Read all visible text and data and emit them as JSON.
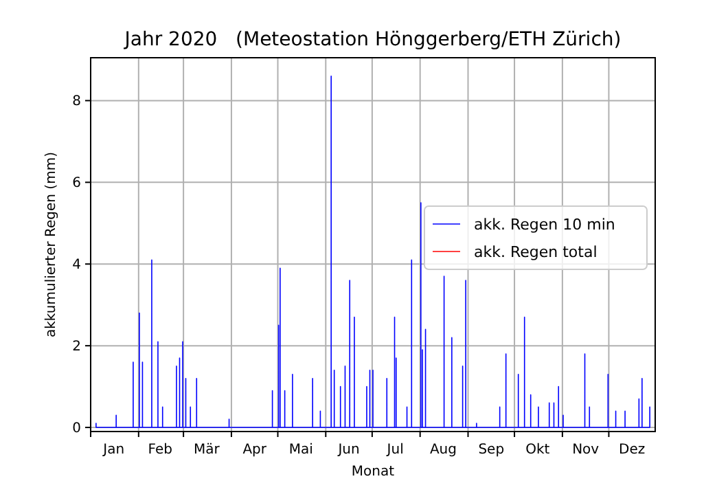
{
  "chart_data": {
    "type": "line",
    "title": "Jahr 2020   (Meteostation Hönggerberg/ETH Zürich)",
    "xlabel": "Monat",
    "ylabel": "akkumulierter Regen (mm)",
    "xlim": [
      "2020-01-01",
      "2020-12-31"
    ],
    "xticks": [
      {
        "value": "2020-01-01",
        "label": null
      },
      {
        "value": "2020-02-01",
        "label": null
      },
      {
        "value": "2020-03-01",
        "label": null
      },
      {
        "value": "2020-04-01",
        "label": null
      },
      {
        "value": "2020-05-01",
        "label": null
      },
      {
        "value": "2020-06-01",
        "label": null
      },
      {
        "value": "2020-07-01",
        "label": null
      },
      {
        "value": "2020-08-01",
        "label": null
      },
      {
        "value": "2020-09-01",
        "label": null
      },
      {
        "value": "2020-10-01",
        "label": null
      },
      {
        "value": "2020-11-01",
        "label": null
      },
      {
        "value": "2020-12-01",
        "label": null
      },
      {
        "value": "2020-01-16",
        "label": "Jan"
      },
      {
        "value": "2020-02-15",
        "label": "Feb"
      },
      {
        "value": "2020-03-16",
        "label": "Mär"
      },
      {
        "value": "2020-04-16",
        "label": "Apr"
      },
      {
        "value": "2020-05-16",
        "label": "Mai"
      },
      {
        "value": "2020-06-16",
        "label": "Jun"
      },
      {
        "value": "2020-07-16",
        "label": "Jul"
      },
      {
        "value": "2020-08-16",
        "label": "Aug"
      },
      {
        "value": "2020-09-16",
        "label": "Sep"
      },
      {
        "value": "2020-10-16",
        "label": "Okt"
      },
      {
        "value": "2020-11-16",
        "label": "Nov"
      },
      {
        "value": "2020-12-16",
        "label": "Dez"
      }
    ],
    "ylim": [
      -0.1,
      9.05
    ],
    "yticks": [
      0,
      2,
      4,
      6,
      8
    ],
    "grid": true,
    "legend": "right",
    "series": [
      {
        "name": "akk. Regen 10 min",
        "color": "#0000ff",
        "x": [
          "2020-01-04T11:50",
          "2020-01-04T12:00",
          "2020-01-04T12:10",
          "2020-01-17T11:50",
          "2020-01-17T12:00",
          "2020-01-17T12:10",
          "2020-01-28T11:50",
          "2020-01-28T12:00",
          "2020-01-28T12:10",
          "2020-02-01T11:50",
          "2020-02-01T12:00",
          "2020-02-01T12:10",
          "2020-02-03T11:50",
          "2020-02-03T12:00",
          "2020-02-03T12:10",
          "2020-02-09T11:50",
          "2020-02-09T12:00",
          "2020-02-09T12:10",
          "2020-02-13T11:50",
          "2020-02-13T12:00",
          "2020-02-13T12:10",
          "2020-02-16T11:50",
          "2020-02-16T12:00",
          "2020-02-16T12:10",
          "2020-02-25T11:50",
          "2020-02-25T12:00",
          "2020-02-25T12:10",
          "2020-02-27T11:50",
          "2020-02-27T12:00",
          "2020-02-27T12:10",
          "2020-02-29T11:50",
          "2020-02-29T12:00",
          "2020-02-29T12:10",
          "2020-03-02T11:50",
          "2020-03-02T12:00",
          "2020-03-02T12:10",
          "2020-03-05T11:50",
          "2020-03-05T12:00",
          "2020-03-05T12:10",
          "2020-03-09T11:50",
          "2020-03-09T12:00",
          "2020-03-09T12:10",
          "2020-03-30T11:50",
          "2020-03-30T12:00",
          "2020-03-30T12:10",
          "2020-04-27T11:50",
          "2020-04-27T12:00",
          "2020-04-27T12:10",
          "2020-05-01T11:50",
          "2020-05-01T12:00",
          "2020-05-01T12:10",
          "2020-05-02T11:50",
          "2020-05-02T12:00",
          "2020-05-02T12:10",
          "2020-05-05T11:50",
          "2020-05-05T12:00",
          "2020-05-05T12:10",
          "2020-05-10T11:50",
          "2020-05-10T12:00",
          "2020-05-10T12:10",
          "2020-05-23T11:50",
          "2020-05-23T12:00",
          "2020-05-23T12:10",
          "2020-05-28T11:50",
          "2020-05-28T12:00",
          "2020-05-28T12:10",
          "2020-06-04T11:50",
          "2020-06-04T12:00",
          "2020-06-04T12:10",
          "2020-06-06T11:50",
          "2020-06-06T12:00",
          "2020-06-06T12:10",
          "2020-06-10T11:50",
          "2020-06-10T12:00",
          "2020-06-10T12:10",
          "2020-06-13T11:50",
          "2020-06-13T12:00",
          "2020-06-13T12:10",
          "2020-06-16T11:50",
          "2020-06-16T12:00",
          "2020-06-16T12:10",
          "2020-06-19T11:50",
          "2020-06-19T12:00",
          "2020-06-19T12:10",
          "2020-06-27T11:50",
          "2020-06-27T12:00",
          "2020-06-27T12:10",
          "2020-06-29T11:50",
          "2020-06-29T12:00",
          "2020-06-29T12:10",
          "2020-07-01T11:50",
          "2020-07-01T12:00",
          "2020-07-01T12:10",
          "2020-07-10T11:50",
          "2020-07-10T12:00",
          "2020-07-10T12:10",
          "2020-07-15T11:50",
          "2020-07-15T12:00",
          "2020-07-15T12:10",
          "2020-07-16T11:50",
          "2020-07-16T12:00",
          "2020-07-16T12:10",
          "2020-07-23T11:50",
          "2020-07-23T12:00",
          "2020-07-23T12:10",
          "2020-07-26T11:50",
          "2020-07-26T12:00",
          "2020-07-26T12:10",
          "2020-08-01T11:50",
          "2020-08-01T12:00",
          "2020-08-01T12:10",
          "2020-08-02T11:50",
          "2020-08-02T12:00",
          "2020-08-02T12:10",
          "2020-08-04T11:50",
          "2020-08-04T12:00",
          "2020-08-04T12:10",
          "2020-08-16T11:50",
          "2020-08-16T12:00",
          "2020-08-16T12:10",
          "2020-08-21T11:50",
          "2020-08-21T12:00",
          "2020-08-21T12:10",
          "2020-08-28T11:50",
          "2020-08-28T12:00",
          "2020-08-28T12:10",
          "2020-08-30T11:50",
          "2020-08-30T12:00",
          "2020-08-30T12:10",
          "2020-09-06T11:50",
          "2020-09-06T12:00",
          "2020-09-06T12:10",
          "2020-09-21T11:50",
          "2020-09-21T12:00",
          "2020-09-21T12:10",
          "2020-09-25T11:50",
          "2020-09-25T12:00",
          "2020-09-25T12:10",
          "2020-10-03T11:50",
          "2020-10-03T12:00",
          "2020-10-03T12:10",
          "2020-10-07T11:50",
          "2020-10-07T12:00",
          "2020-10-07T12:10",
          "2020-10-11T11:50",
          "2020-10-11T12:00",
          "2020-10-11T12:10",
          "2020-10-16T11:50",
          "2020-10-16T12:00",
          "2020-10-16T12:10",
          "2020-10-23T11:50",
          "2020-10-23T12:00",
          "2020-10-23T12:10",
          "2020-10-26T11:50",
          "2020-10-26T12:00",
          "2020-10-26T12:10",
          "2020-10-29T11:50",
          "2020-10-29T12:00",
          "2020-10-29T12:10",
          "2020-11-01T11:50",
          "2020-11-01T12:00",
          "2020-11-01T12:10",
          "2020-11-15T11:50",
          "2020-11-15T12:00",
          "2020-11-15T12:10",
          "2020-11-18T11:50",
          "2020-11-18T12:00",
          "2020-11-18T12:10",
          "2020-11-30T11:50",
          "2020-11-30T12:00",
          "2020-11-30T12:10",
          "2020-12-05T11:50",
          "2020-12-05T12:00",
          "2020-12-05T12:10",
          "2020-12-11T11:50",
          "2020-12-11T12:00",
          "2020-12-11T12:10",
          "2020-12-20T11:50",
          "2020-12-20T12:00",
          "2020-12-20T12:10",
          "2020-12-22T11:50",
          "2020-12-22T12:00",
          "2020-12-22T12:10",
          "2020-12-27T11:50",
          "2020-12-27T12:00",
          "2020-12-27T12:10"
        ],
        "values": [
          0,
          0.1,
          0,
          0,
          0.3,
          0,
          0,
          1.6,
          0,
          0,
          2.8,
          0,
          0,
          1.6,
          0,
          0,
          4.1,
          0,
          0,
          2.1,
          0,
          0,
          0.5,
          0,
          0,
          1.5,
          0,
          0,
          1.7,
          0,
          0,
          2.1,
          0,
          0,
          1.2,
          0,
          0,
          0.5,
          0,
          0,
          1.2,
          0,
          0,
          0.2,
          0,
          0,
          0.9,
          0,
          0,
          2.5,
          0,
          0,
          3.9,
          0,
          0,
          0.9,
          0,
          0,
          1.3,
          0,
          0,
          1.2,
          0,
          0,
          0.4,
          0,
          0,
          8.6,
          0,
          0,
          1.4,
          0,
          0,
          1.0,
          0,
          0,
          1.5,
          0,
          0,
          3.6,
          0,
          0,
          2.7,
          0,
          0,
          1.0,
          0,
          0,
          1.4,
          0,
          0,
          1.4,
          0,
          0,
          1.2,
          0,
          0,
          2.7,
          0,
          0,
          1.7,
          0,
          0,
          0.5,
          0,
          0,
          4.1,
          0,
          0,
          5.5,
          0,
          0,
          1.9,
          0,
          0,
          2.4,
          0,
          0,
          3.7,
          0,
          0,
          2.2,
          0,
          0,
          1.5,
          0,
          0,
          3.6,
          0,
          0,
          0.1,
          0,
          0,
          0.5,
          0,
          0,
          1.8,
          0,
          0,
          1.3,
          0,
          0,
          2.7,
          0,
          0,
          0.8,
          0,
          0,
          0.5,
          0,
          0,
          0.6,
          0,
          0,
          0.6,
          0,
          0,
          1.0,
          0,
          0,
          0.3,
          0,
          0,
          1.8,
          0,
          0,
          0.5,
          0,
          0,
          1.3,
          0,
          0,
          0.4,
          0,
          0,
          0.4,
          0,
          0,
          0.7,
          0,
          0,
          1.2,
          0,
          0,
          0.5,
          0
        ]
      },
      {
        "name": "akk. Regen total",
        "color": "#ff0000"
      }
    ]
  }
}
